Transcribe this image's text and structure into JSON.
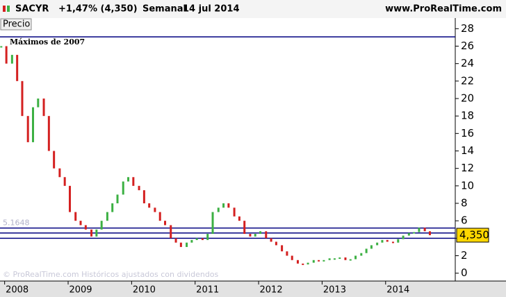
{
  "chart_data": {
    "type": "price",
    "symbol": "SACYR",
    "change": "+1,47% (4,350)",
    "period": "Semanal",
    "date": "14 jul 2014",
    "site": "www.ProRealTime.com",
    "panel_label": "Precio",
    "watermark": "© ProRealTime.com  Históricos ajustados con dividendos",
    "annotation": "Máximos de 2007",
    "last_value_label": "4,350",
    "up_color": "#3cb043",
    "down_color": "#d42020",
    "level_color": "#000080",
    "levels": [
      27.06,
      5.1648,
      4.6,
      4.0
    ],
    "level_labels": [
      null,
      "5.1648",
      null,
      null
    ],
    "x": [
      2007.75,
      2007.83,
      2007.92,
      2008.0,
      2008.08,
      2008.17,
      2008.25,
      2008.33,
      2008.42,
      2008.5,
      2008.58,
      2008.67,
      2008.75,
      2008.83,
      2008.92,
      2009.0,
      2009.08,
      2009.17,
      2009.25,
      2009.33,
      2009.42,
      2009.5,
      2009.58,
      2009.67,
      2009.75,
      2009.83,
      2009.92,
      2010.0,
      2010.08,
      2010.17,
      2010.25,
      2010.33,
      2010.42,
      2010.5,
      2010.58,
      2010.67,
      2010.75,
      2010.83,
      2010.92,
      2011.0,
      2011.08,
      2011.17,
      2011.25,
      2011.33,
      2011.42,
      2011.5,
      2011.58,
      2011.67,
      2011.75,
      2011.83,
      2011.92,
      2012.0,
      2012.08,
      2012.17,
      2012.25,
      2012.33,
      2012.42,
      2012.5,
      2012.58,
      2012.67,
      2012.75,
      2012.83,
      2012.92,
      2013.0,
      2013.08,
      2013.17,
      2013.25,
      2013.33,
      2013.42,
      2013.5,
      2013.58,
      2013.67,
      2013.75,
      2013.83,
      2013.92,
      2014.0,
      2014.08,
      2014.17,
      2014.25,
      2014.33,
      2014.42,
      2014.5
    ],
    "values": [
      26,
      24,
      25,
      22,
      18,
      15,
      19,
      20,
      18,
      14,
      12,
      11,
      10,
      7,
      6,
      5.5,
      5,
      4.2,
      5,
      6,
      7,
      8,
      9,
      10.5,
      11,
      10,
      9.5,
      8,
      7.5,
      7,
      6,
      5.5,
      4,
      3.5,
      3,
      3.5,
      3.8,
      4,
      3.8,
      4.5,
      7,
      7.5,
      8,
      7.5,
      6.5,
      6,
      4.5,
      4.2,
      4.5,
      4.8,
      4,
      3.6,
      3.2,
      2.5,
      2,
      1.5,
      1.1,
      1,
      1.2,
      1.5,
      1.4,
      1.5,
      1.7,
      1.7,
      1.8,
      1.5,
      1.6,
      2,
      2.3,
      2.8,
      3.2,
      3.5,
      3.8,
      3.6,
      3.5,
      3.9,
      4.3,
      4.6,
      4.7,
      5.2,
      4.8,
      4.35
    ],
    "xlim": [
      2007.73,
      2014.9
    ],
    "xticks": [
      2008,
      2009,
      2010,
      2011,
      2012,
      2013,
      2014
    ],
    "ylim": [
      -0.9,
      28.9
    ],
    "yticks": [
      0,
      2,
      4,
      6,
      8,
      10,
      12,
      14,
      16,
      18,
      20,
      22,
      24,
      26,
      28
    ]
  }
}
